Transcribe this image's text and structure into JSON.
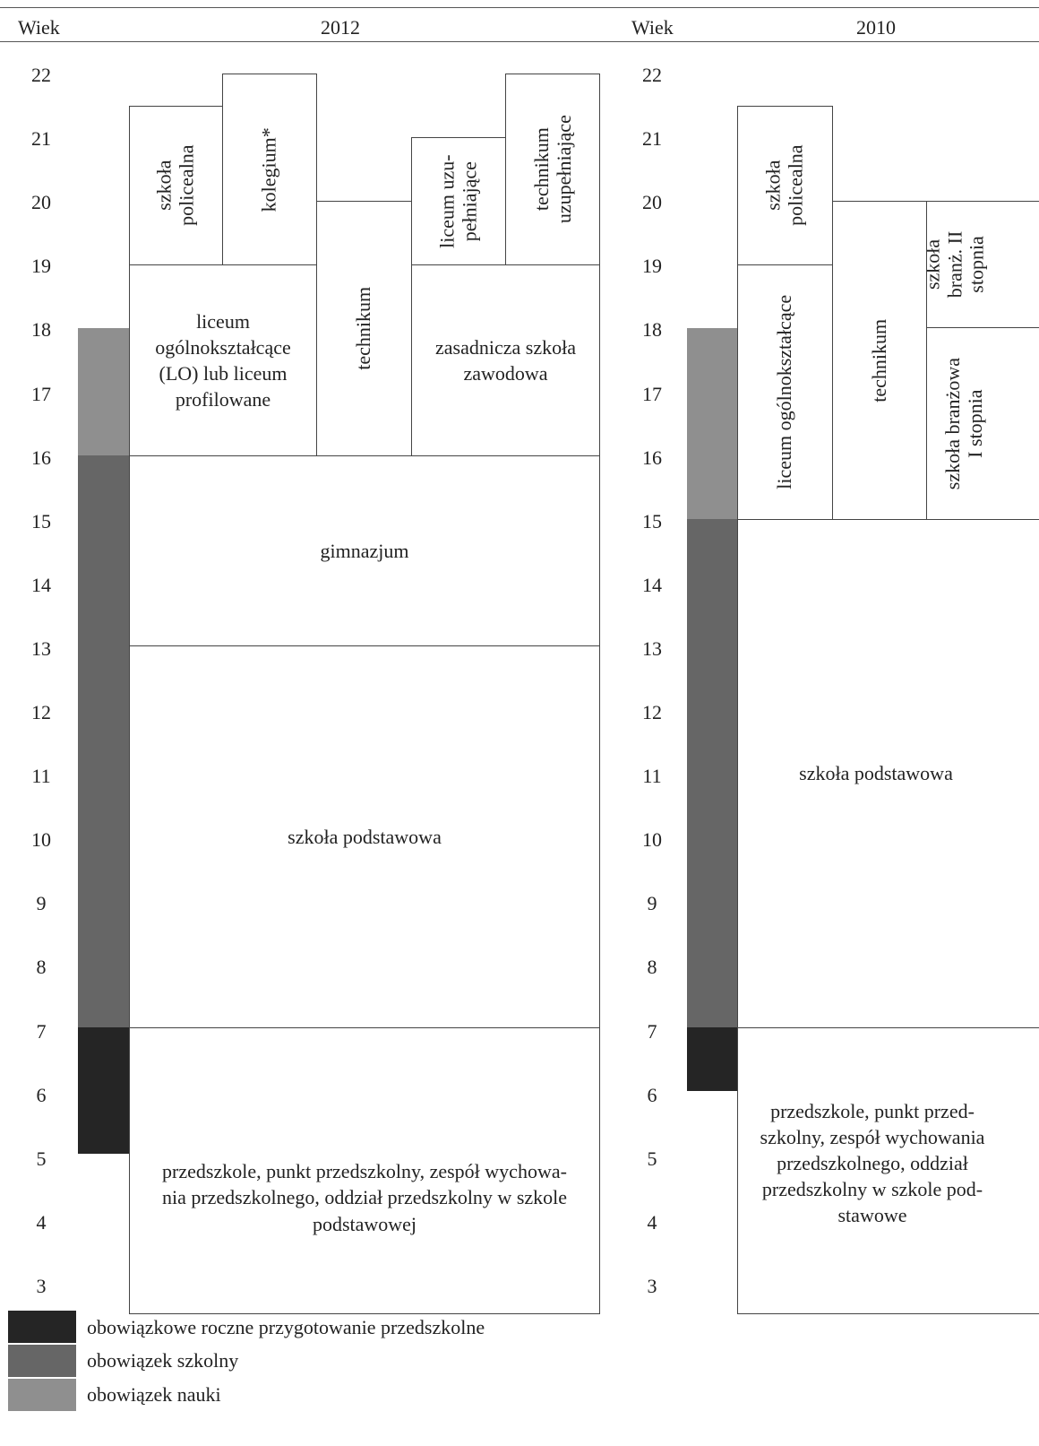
{
  "colors": {
    "obowiazek_nauki": "#8f8f8f",
    "obowiazek_szkolny": "#666666",
    "przygotowanie": "#252525"
  },
  "header": {
    "age_label_left": "Wiek",
    "year_left": "2012",
    "age_label_right": "Wiek",
    "year_right": "2010"
  },
  "ages": [
    "22",
    "21",
    "20",
    "19",
    "18",
    "17",
    "16",
    "15",
    "14",
    "13",
    "12",
    "11",
    "10",
    "9",
    "8",
    "7",
    "6",
    "5",
    "4",
    "3"
  ],
  "left": {
    "szkola_policealna": "szkoła\npolicealna",
    "kolegium": "kolegium*",
    "liceum_uzupelniajace": "liceum uzu-\npełniające",
    "technikum_uzupelniajace": "technikum\nuzupełniające",
    "liceum": "liceum\nogólnokształcące\n(LO) lub liceum\nprofilowane",
    "technikum": "technikum",
    "zasadnicza": "zasadnicza szkoła\nzawodowa",
    "gimnazjum": "gimnazjum",
    "szkola_podstawowa": "szkoła podstawowa",
    "przedszkole": "przedszkole, punkt przedszkolny, zespół wychowa-\nnia przedszkolnego, oddział przedszkolny w szkole\npodstawowej"
  },
  "right": {
    "szkola_policealna": "szkoła\npolicealna",
    "branz_ii": "szkoła\nbranż. II\nstopnia",
    "liceum": "liceum ogólnokształcące",
    "technikum": "technikum",
    "branz_i": "szkoła branżowa\nI stopnia",
    "szkola_podstawowa": "szkoła podstawowa",
    "przedszkole": "przedszkole, punkt przed-\nszkolny, zespół wychowania\nprzedszkolnego, oddział\nprzedszkolny w szkole pod-\nstawowe"
  },
  "legend": {
    "przygotowanie": "obowiązkowe roczne przygotowanie przedszkolne",
    "obowiazek_szkolny": "obowiązek szkolny",
    "obowiazek_nauki": "obowiązek nauki"
  }
}
